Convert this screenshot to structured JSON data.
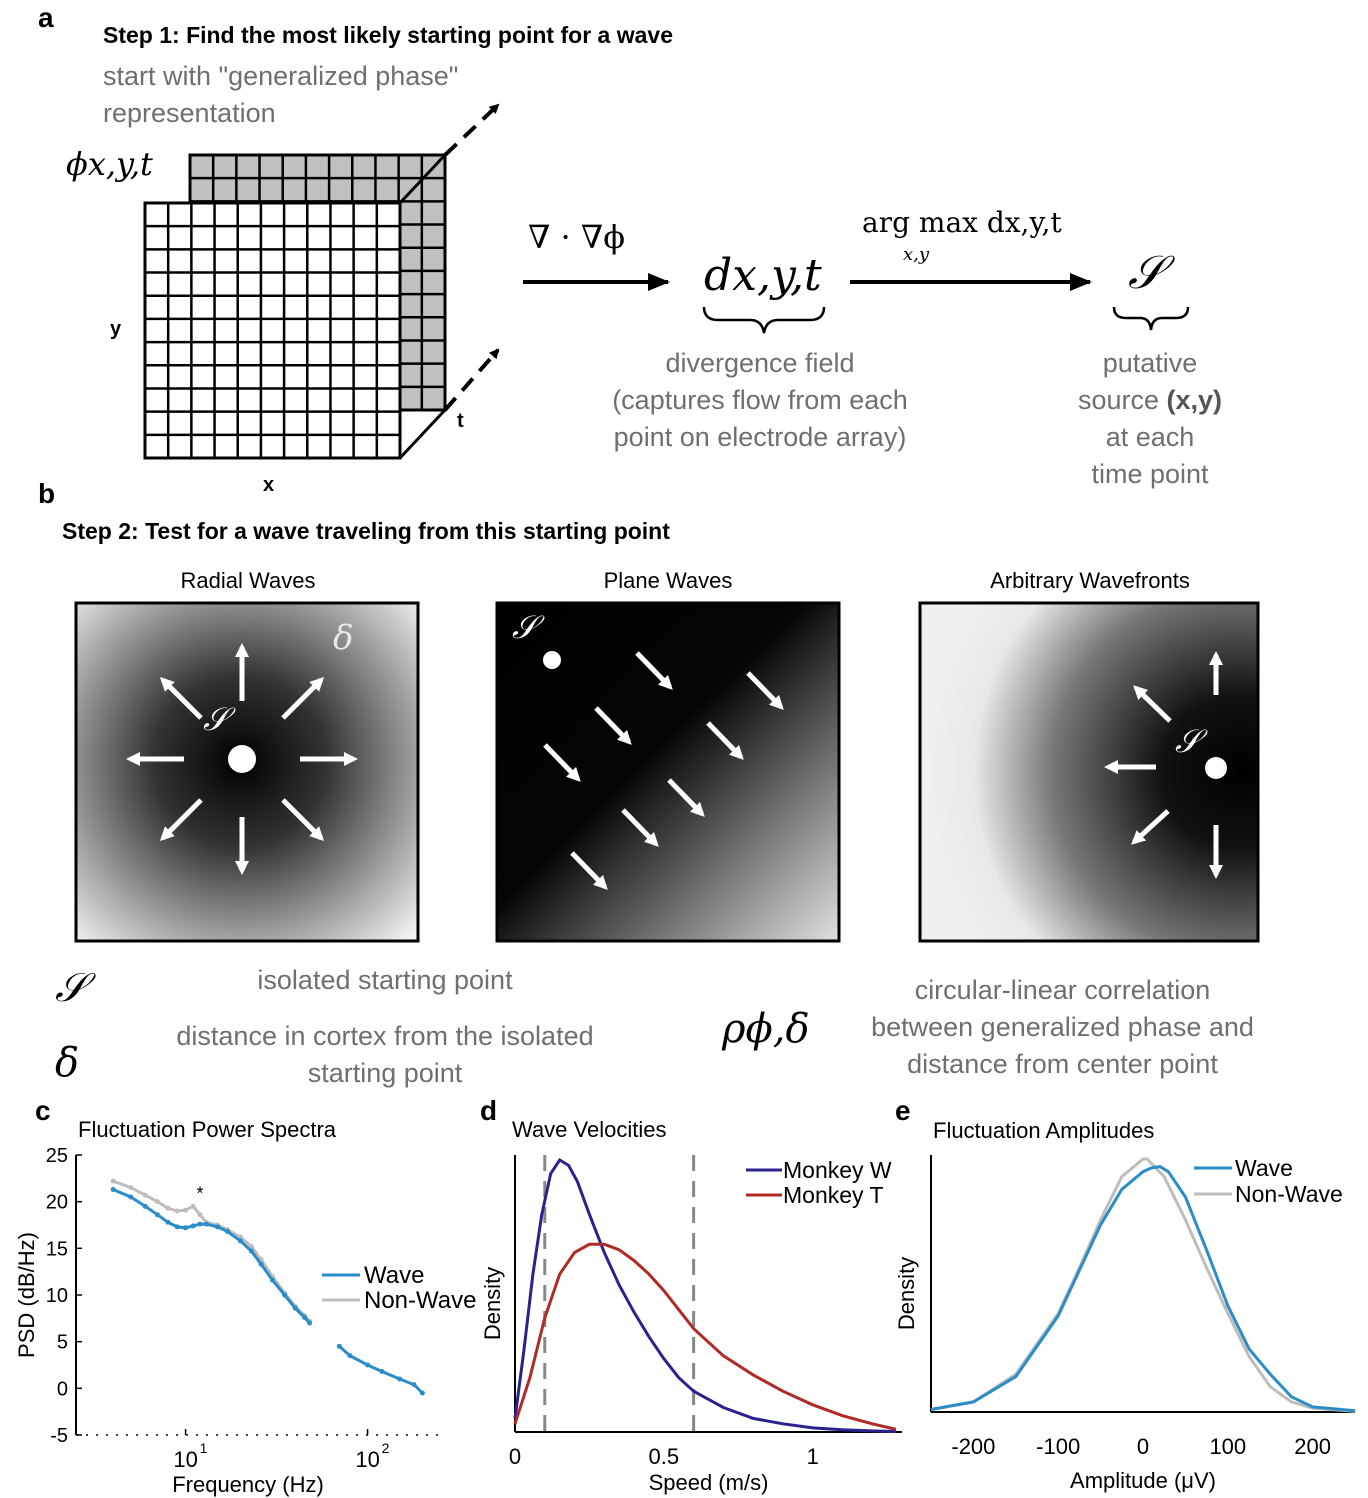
{
  "panel_a": {
    "label": "a",
    "step_title": "Step 1: Find the most likely starting point for a wave",
    "subtitle_1": "start with \"generalized phase\"",
    "subtitle_2": "representation",
    "phi_label": "ϕx,y,t",
    "axis_x": "x",
    "axis_y": "y",
    "axis_t": "t",
    "op_divergence": "∇ · ∇ϕ",
    "d_symbol": "dx,y,t",
    "op_argmax_top": "arg max dx,y,t",
    "op_argmax_sub": "x,y",
    "s_symbol": "𝒮",
    "divergence_text": [
      "divergence field",
      "(captures flow from each",
      "point on electrode array)"
    ],
    "source_text": [
      "putative",
      "source",
      "(x,y)",
      "at each",
      "time point"
    ]
  },
  "panel_b": {
    "label": "b",
    "step_title": "Step 2: Test for a wave traveling from this starting point",
    "panels": [
      "Radial Waves",
      "Plane Waves",
      "Arbitrary Wavefronts"
    ],
    "s_symbol": "𝒮",
    "delta_symbol": "δ",
    "rho_symbol": "ρϕ,δ",
    "legend_s": "isolated starting point",
    "legend_delta": [
      "distance in cortex from the isolated",
      "starting point"
    ],
    "legend_rho": [
      "circular-linear correlation",
      "between generalized phase and",
      "distance from center point"
    ]
  },
  "chart_data": [
    {
      "panel": "c",
      "type": "line",
      "title": "Fluctuation Power Spectra",
      "xlabel": "Frequency (Hz)",
      "ylabel": "PSD (dB/Hz)",
      "xscale": "log",
      "xlim": [
        2.5,
        250
      ],
      "ylim": [
        -5,
        25
      ],
      "yticks": [
        -5,
        0,
        5,
        10,
        15,
        20,
        25
      ],
      "xtick_labels": [
        "10",
        "1",
        "10",
        "2"
      ],
      "legend_position": "top-right",
      "annotation": "*",
      "colors": {
        "Wave": "#2a8dc8",
        "Non-Wave": "#bdbdbd"
      },
      "series": [
        {
          "name": "Non-Wave",
          "x": [
            4,
            5,
            6,
            7,
            8,
            9,
            10,
            11,
            12,
            13,
            15,
            17,
            20,
            23,
            26,
            30,
            35,
            40,
            45,
            48
          ],
          "values": [
            22.2,
            21.5,
            20.7,
            20.0,
            19.3,
            19.0,
            19.1,
            19.5,
            18.6,
            17.8,
            17.5,
            17.0,
            16.2,
            15.2,
            13.8,
            12.0,
            10.2,
            8.8,
            7.8,
            7.2
          ]
        },
        {
          "name": "Wave",
          "x": [
            4,
            5,
            6,
            7,
            8,
            9,
            10,
            11,
            12,
            13,
            15,
            17,
            20,
            23,
            26,
            30,
            35,
            40,
            45,
            48,
            70,
            80,
            100,
            120,
            150,
            180,
            200
          ],
          "values": [
            21.3,
            20.5,
            19.5,
            18.6,
            17.8,
            17.3,
            17.2,
            17.4,
            17.6,
            17.6,
            17.3,
            16.8,
            15.8,
            14.7,
            13.3,
            11.6,
            10.0,
            8.6,
            7.6,
            7.0,
            4.5,
            3.5,
            2.5,
            1.8,
            1.0,
            0.4,
            -0.5
          ]
        }
      ]
    },
    {
      "panel": "d",
      "type": "line",
      "title": "Wave Velocities",
      "xlabel": "Speed (m/s)",
      "ylabel": "Density",
      "xlim": [
        0,
        1.3
      ],
      "xticks": [
        0,
        0.5,
        1
      ],
      "xtick_labels": [
        "0",
        "0.5",
        "1"
      ],
      "vlines": [
        0.1,
        0.6
      ],
      "legend_position": "top-right",
      "colors": {
        "Monkey W": "#2b2290",
        "Monkey T": "#b02a26"
      },
      "series": [
        {
          "name": "Monkey W",
          "x": [
            0,
            0.03,
            0.06,
            0.09,
            0.12,
            0.15,
            0.18,
            0.21,
            0.25,
            0.3,
            0.35,
            0.4,
            0.45,
            0.5,
            0.55,
            0.6,
            0.7,
            0.8,
            0.9,
            1.0,
            1.1,
            1.2,
            1.28
          ],
          "values": [
            0.05,
            0.3,
            0.58,
            0.8,
            0.95,
            1.0,
            0.98,
            0.92,
            0.8,
            0.66,
            0.54,
            0.44,
            0.35,
            0.27,
            0.2,
            0.15,
            0.09,
            0.05,
            0.03,
            0.015,
            0.008,
            0.004,
            0.002
          ]
        },
        {
          "name": "Monkey T",
          "x": [
            0,
            0.05,
            0.1,
            0.15,
            0.2,
            0.25,
            0.3,
            0.35,
            0.4,
            0.45,
            0.5,
            0.55,
            0.6,
            0.7,
            0.8,
            0.9,
            1.0,
            1.1,
            1.2,
            1.28
          ],
          "values": [
            0.03,
            0.2,
            0.42,
            0.58,
            0.66,
            0.69,
            0.69,
            0.67,
            0.63,
            0.58,
            0.52,
            0.45,
            0.38,
            0.28,
            0.21,
            0.15,
            0.1,
            0.06,
            0.03,
            0.01
          ]
        }
      ]
    },
    {
      "panel": "e",
      "type": "line",
      "title": "Fluctuation Amplitudes",
      "xlabel": "Amplitude (μV)",
      "ylabel": "Density",
      "xlim": [
        -250,
        250
      ],
      "xticks": [
        -200,
        -100,
        0,
        100,
        200
      ],
      "xtick_labels": [
        "-200",
        "-100",
        "0",
        "100",
        "200"
      ],
      "legend_position": "top-right",
      "colors": {
        "Wave": "#2a8dc8",
        "Non-Wave": "#bdbdbd"
      },
      "series": [
        {
          "name": "Wave",
          "x": [
            -250,
            -200,
            -150,
            -100,
            -75,
            -50,
            -25,
            0,
            10,
            20,
            30,
            50,
            75,
            100,
            125,
            150,
            175,
            200,
            250
          ],
          "values": [
            0.01,
            0.04,
            0.14,
            0.38,
            0.56,
            0.74,
            0.88,
            0.95,
            0.965,
            0.97,
            0.95,
            0.85,
            0.64,
            0.42,
            0.25,
            0.15,
            0.06,
            0.02,
            0.005
          ]
        },
        {
          "name": "Non-Wave",
          "x": [
            -250,
            -200,
            -150,
            -100,
            -75,
            -50,
            -25,
            0,
            5,
            25,
            50,
            75,
            100,
            125,
            150,
            175,
            200,
            250
          ],
          "values": [
            0.01,
            0.04,
            0.15,
            0.39,
            0.57,
            0.76,
            0.93,
            1.0,
            1.0,
            0.93,
            0.76,
            0.57,
            0.39,
            0.22,
            0.1,
            0.04,
            0.015,
            0.003
          ]
        }
      ]
    }
  ]
}
